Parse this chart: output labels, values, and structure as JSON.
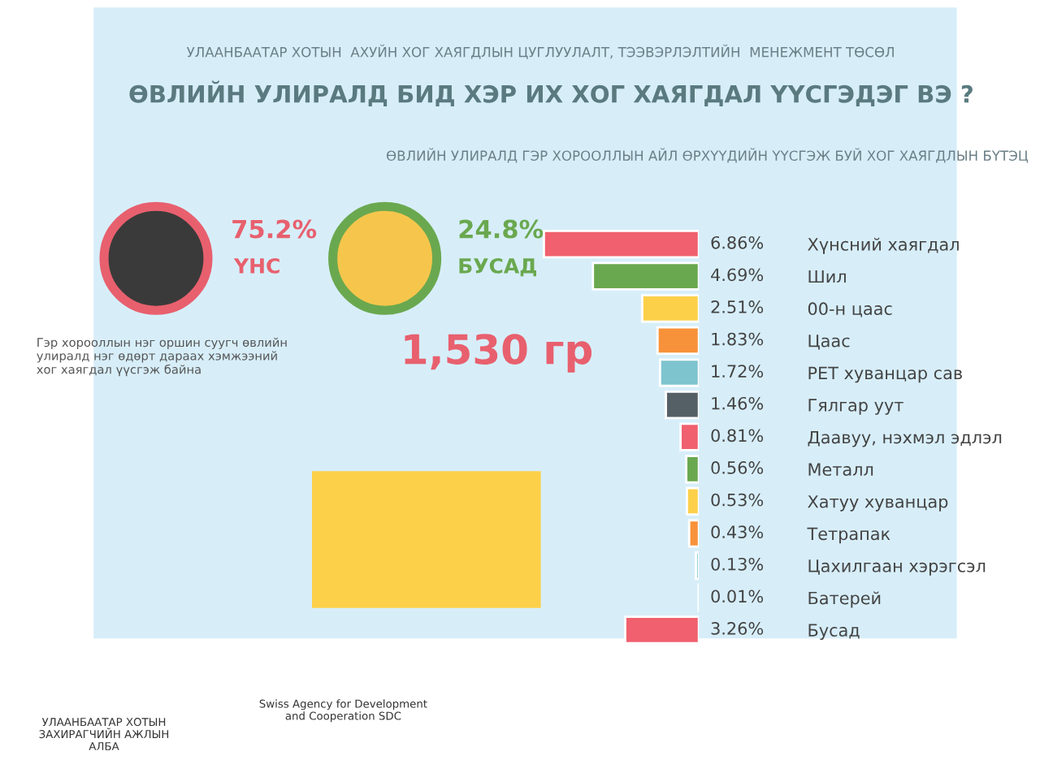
{
  "chart_data": {
    "type": "bar",
    "orientation": "horizontal",
    "data_labels": true,
    "subtitle": "УЛААНБААТАР ХОТЫН  АХУЙН ХОГ ХАЯГДЛЫН ЦУГЛУУЛАЛТ, ТЭЭВЭРЛЭЛТИЙН  МЕНЕЖМЕНТ ТӨСӨЛ",
    "title": "ӨВЛИЙН УЛИРАЛД БИД ХЭР ИХ ХОГ ХАЯГДАЛ ҮҮСГЭДЭГ ВЭ ?",
    "categories": [
      "Хүнсний хаягдал",
      "Шил",
      "00-н цаас",
      "Цаас",
      "PET хуванцар сав",
      "Гялгар уут",
      "Даавуу, нэхмэл эдлэл",
      "Металл",
      "Хатуу хуванцар",
      "Тетрапак",
      "Цахилгаан хэрэгсэл",
      "Батерей",
      "Бусад"
    ],
    "values": [
      6.86,
      4.69,
      2.51,
      1.83,
      1.72,
      1.46,
      0.81,
      0.56,
      0.53,
      0.43,
      0.13,
      0.01,
      3.26
    ],
    "value_labels": [
      "6.86%",
      "4.69%",
      "2.51%",
      "1.83%",
      "1.72%",
      "1.46%",
      "0.81%",
      "0.56%",
      "0.53%",
      "0.43%",
      "0.13%",
      "0.01%",
      "3.26%"
    ],
    "colors": [
      "#f0606e",
      "#6aa84f",
      "#fdd04a",
      "#f7923a",
      "#7ec4cf",
      "#555f66",
      "#f0606e",
      "#6aa84f",
      "#fdd04a",
      "#f7923a",
      "#7ec4cf",
      "#555f66",
      "#f0606e"
    ],
    "annotations": [
      "ӨВЛИЙН УЛИРАЛД ГЭР ХОРООЛЛЫН АЙЛ ӨРХҮҮДИЙН ҮҮСГЭЖ БУЙ ХОГ ХАЯГДЛЫН БҮТЭЦ",
      "75.2%",
      "ҮНС",
      "24.8%",
      "БУСАД",
      "Гэр хорооллын нэг оршин суугч өвлийн\nулиралд нэг өдөрт дараах хэмжээний\nхог хаягдал үүсгэж байна",
      "1,530 гр",
      "УЛААНБААТАР ХОТЫН\nЗАХИРАГЧИЙН АЖЛЫН\nАЛБА",
      "Swiss Agency for Development\nand Cooperation SDC"
    ],
    "grid": false,
    "legend": false
  }
}
